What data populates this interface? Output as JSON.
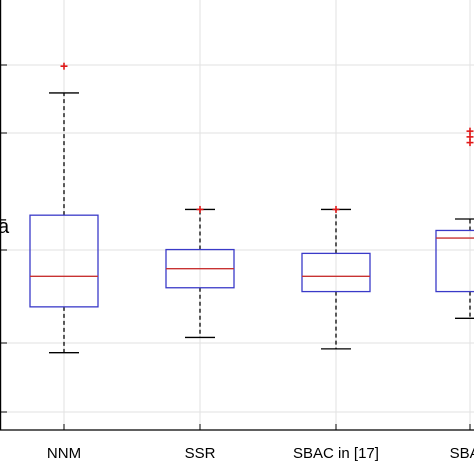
{
  "chart_data": {
    "type": "boxplot",
    "categories": [
      "NNM",
      "SSR",
      "SBAC in [17]",
      "SBAC"
    ],
    "ylim": [
      0.0,
      10.0
    ],
    "grid": true,
    "y_axis_fragment": "ā",
    "boxes": [
      {
        "category": "NNM",
        "whisker_low": 1.5,
        "q1": 2.7,
        "median": 3.5,
        "q3": 5.1,
        "whisker_high": 8.3,
        "outliers": [
          9.0
        ]
      },
      {
        "category": "SSR",
        "whisker_low": 1.9,
        "q1": 3.2,
        "median": 3.7,
        "q3": 4.2,
        "whisker_high": 5.25,
        "outliers": [
          5.25
        ]
      },
      {
        "category": "SBAC in [17]",
        "whisker_low": 1.6,
        "q1": 3.1,
        "median": 3.5,
        "q3": 4.1,
        "whisker_high": 5.25,
        "outliers": [
          5.25
        ]
      },
      {
        "category": "SBAC",
        "whisker_low": 2.4,
        "q1": 3.1,
        "median": 4.5,
        "q3": 4.7,
        "whisker_high": 5.0,
        "outliers": [
          7.3,
          7.15,
          7.0
        ]
      }
    ],
    "colors": {
      "box": "#3a3ac8",
      "median": "#c83232",
      "whisker": "#000000",
      "outlier": "#e01818",
      "grid": "#e2e2e2",
      "axis": "#000000"
    }
  }
}
